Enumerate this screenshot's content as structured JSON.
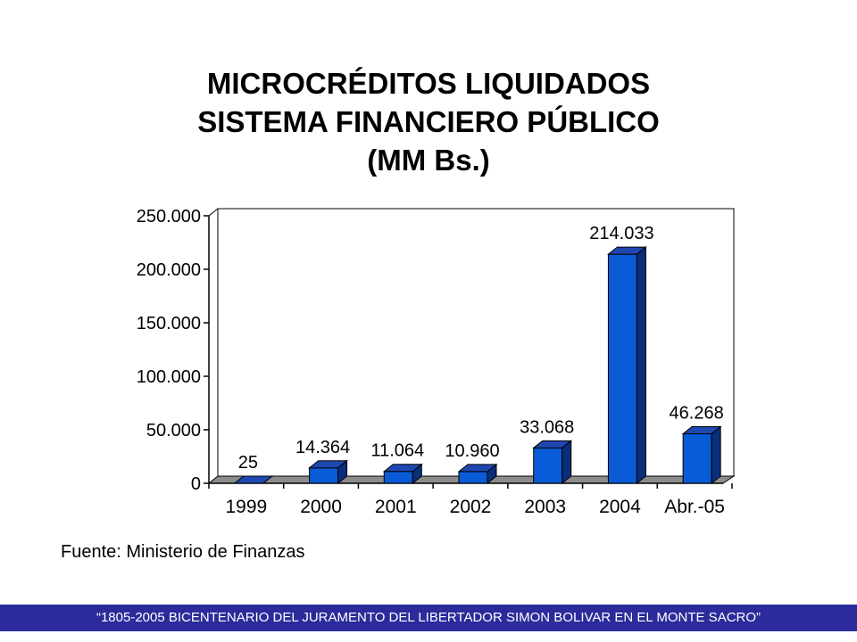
{
  "title": {
    "line1": "MICROCRÉDITOS LIQUIDADOS",
    "line2": "SISTEMA FINANCIERO PÚBLICO",
    "line3": "(MM Bs.)"
  },
  "chart_data": {
    "type": "bar",
    "categories": [
      "1999",
      "2000",
      "2001",
      "2002",
      "2003",
      "2004",
      "Abr.-05"
    ],
    "values": [
      25,
      14364,
      11064,
      10960,
      33068,
      214033,
      46268
    ],
    "data_labels": [
      "25",
      "14.364",
      "11.064",
      "10.960",
      "33.068",
      "214.033",
      "46.268"
    ],
    "ylim": [
      0,
      250000
    ],
    "yticks": [
      0,
      50000,
      100000,
      150000,
      200000,
      250000
    ],
    "ytick_labels": [
      "0",
      "50.000",
      "100.000",
      "150.000",
      "200.000",
      "250.000"
    ],
    "style": "3d",
    "grid": false,
    "colors": {
      "bar_front": "#0a5bd6",
      "bar_side": "#0a2f7a",
      "bar_top": "#1f47b0",
      "floor": "#8c8c8c"
    }
  },
  "source": "Fuente: Ministerio de Finanzas",
  "footer": "“1805-2005 BICENTENARIO DEL JURAMENTO DEL LIBERTADOR SIMON BOLIVAR EN EL MONTE SACRO”"
}
